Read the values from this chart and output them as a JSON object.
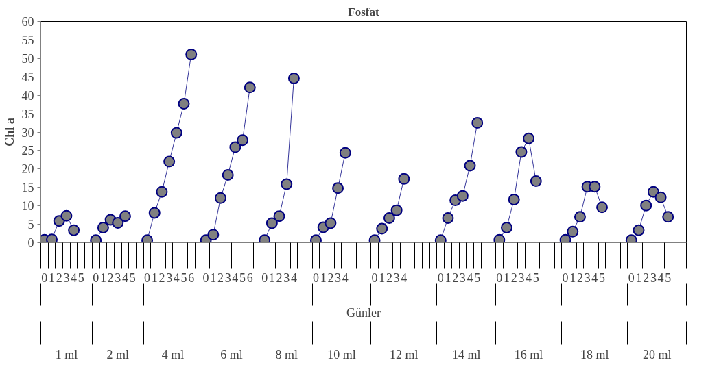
{
  "chart_data": {
    "type": "line",
    "title": "Fosfat",
    "xlabel": "Günler",
    "ylabel": "Chl a",
    "categories": [
      "0",
      "1",
      "2",
      "3",
      "4",
      "5",
      null,
      "0",
      "1",
      "2",
      "3",
      "4",
      "5",
      null,
      "0",
      "1",
      "2",
      "3",
      "4",
      "5",
      "6",
      null,
      "0",
      "1",
      "2",
      "3",
      "4",
      "5",
      "6",
      null,
      "0",
      "1",
      "2",
      "3",
      "4",
      null,
      null,
      "0",
      "1",
      "2",
      "3",
      "4",
      null,
      null,
      null,
      "0",
      "1",
      "2",
      "3",
      "4",
      null,
      null,
      null,
      null,
      "0",
      "1",
      "2",
      "3",
      "4",
      "5",
      null,
      null,
      "0",
      "1",
      "2",
      "3",
      "4",
      "5",
      null,
      null,
      null,
      "0",
      "1",
      "2",
      "3",
      "4",
      "5",
      null,
      null,
      null,
      "0",
      "1",
      "2",
      "3",
      "4",
      "5",
      null,
      null
    ],
    "annotations": [
      "1 ml",
      "2 ml",
      "4 ml",
      "6 ml",
      "8 ml",
      "10 ml",
      "12 ml",
      "14 ml",
      "16 ml",
      "18 ml",
      "20 ml"
    ],
    "ylim": [
      0,
      60
    ],
    "yticks": [
      0,
      5,
      10,
      15,
      20,
      25,
      30,
      35,
      40,
      45,
      50,
      55,
      60
    ],
    "marker": "circle",
    "line_style": "solid",
    "series": [
      {
        "color": "#000080",
        "values": [
          0.8,
          0.9,
          5.9,
          7.3,
          3.4,
          null,
          null,
          null,
          null,
          null,
          null,
          null,
          null,
          null,
          null,
          null,
          null,
          null,
          null,
          null,
          null,
          null,
          null,
          null,
          null,
          null,
          null,
          null,
          null,
          null,
          null,
          null,
          null,
          null,
          null,
          null,
          null,
          null,
          null,
          null,
          null,
          null,
          null,
          null,
          null,
          null,
          null,
          null,
          null,
          null,
          null,
          null,
          null,
          null,
          null,
          null,
          null,
          null,
          null,
          null,
          null,
          null,
          null,
          null,
          null,
          null,
          null,
          null,
          null,
          null,
          null,
          null,
          null,
          null,
          null,
          null,
          null,
          null,
          null,
          null,
          null,
          null,
          null,
          null,
          null,
          null,
          null,
          null
        ]
      },
      {
        "color": "#000080",
        "values": [
          null,
          null,
          null,
          null,
          null,
          null,
          null,
          0.7,
          4.1,
          6.2,
          5.4,
          7.2,
          null,
          null,
          null,
          null,
          null,
          null,
          null,
          null,
          null,
          null,
          null,
          null,
          null,
          null,
          null,
          null,
          null,
          null,
          null,
          null,
          null,
          null,
          null,
          null,
          null,
          null,
          null,
          null,
          null,
          null,
          null,
          null,
          null,
          null,
          null,
          null,
          null,
          null,
          null,
          null,
          null,
          null,
          null,
          null,
          null,
          null,
          null,
          null,
          null,
          null,
          null,
          null,
          null,
          null,
          null,
          null,
          null,
          null,
          null,
          null,
          null,
          null,
          null,
          null,
          null,
          null,
          null,
          null,
          null,
          null,
          null,
          null,
          null,
          null,
          null,
          null
        ]
      },
      {
        "color": "#000080",
        "values": [
          null,
          null,
          null,
          null,
          null,
          null,
          null,
          null,
          null,
          null,
          null,
          null,
          null,
          null,
          0.7,
          8.1,
          13.8,
          22.0,
          29.8,
          37.7,
          51.1,
          null,
          null,
          null,
          null,
          null,
          null,
          null,
          null,
          null,
          null,
          null,
          null,
          null,
          null,
          null,
          null,
          null,
          null,
          null,
          null,
          null,
          null,
          null,
          null,
          null,
          null,
          null,
          null,
          null,
          null,
          null,
          null,
          null,
          null,
          null,
          null,
          null,
          null,
          null,
          null,
          null,
          null,
          null,
          null,
          null,
          null,
          null,
          null,
          null,
          null,
          null,
          null,
          null,
          null,
          null,
          null,
          null,
          null,
          null,
          null,
          null,
          null,
          null,
          null,
          null,
          null,
          null
        ]
      },
      {
        "color": "#000080",
        "values": [
          null,
          null,
          null,
          null,
          null,
          null,
          null,
          null,
          null,
          null,
          null,
          null,
          null,
          null,
          null,
          null,
          null,
          null,
          null,
          null,
          null,
          null,
          0.7,
          2.2,
          12.1,
          18.4,
          25.9,
          27.8,
          42.1,
          null,
          null,
          null,
          null,
          null,
          null,
          null,
          null,
          null,
          null,
          null,
          null,
          null,
          null,
          null,
          null,
          null,
          null,
          null,
          null,
          null,
          null,
          null,
          null,
          null,
          null,
          null,
          null,
          null,
          null,
          null,
          null,
          null,
          null,
          null,
          null,
          null,
          null,
          null,
          null,
          null,
          null,
          null,
          null,
          null,
          null,
          null,
          null,
          null,
          null,
          null,
          null,
          null,
          null,
          null,
          null,
          null,
          null,
          null
        ]
      },
      {
        "color": "#000080",
        "values": [
          null,
          null,
          null,
          null,
          null,
          null,
          null,
          null,
          null,
          null,
          null,
          null,
          null,
          null,
          null,
          null,
          null,
          null,
          null,
          null,
          null,
          null,
          null,
          null,
          null,
          null,
          null,
          null,
          null,
          null,
          0.7,
          5.3,
          7.2,
          15.9,
          44.6,
          null,
          null,
          null,
          null,
          null,
          null,
          null,
          null,
          null,
          null,
          null,
          null,
          null,
          null,
          null,
          null,
          null,
          null,
          null,
          null,
          null,
          null,
          null,
          null,
          null,
          null,
          null,
          null,
          null,
          null,
          null,
          null,
          null,
          null,
          null,
          null,
          null,
          null,
          null,
          null,
          null,
          null,
          null,
          null,
          null,
          null,
          null,
          null,
          null,
          null,
          null,
          null,
          null
        ]
      },
      {
        "color": "#000080",
        "values": [
          null,
          null,
          null,
          null,
          null,
          null,
          null,
          null,
          null,
          null,
          null,
          null,
          null,
          null,
          null,
          null,
          null,
          null,
          null,
          null,
          null,
          null,
          null,
          null,
          null,
          null,
          null,
          null,
          null,
          null,
          null,
          null,
          null,
          null,
          null,
          null,
          null,
          0.7,
          4.2,
          5.3,
          14.8,
          24.4,
          null,
          null,
          null,
          null,
          null,
          null,
          null,
          null,
          null,
          null,
          null,
          null,
          null,
          null,
          null,
          null,
          null,
          null,
          null,
          null,
          null,
          null,
          null,
          null,
          null,
          null,
          null,
          null,
          null,
          null,
          null,
          null,
          null,
          null,
          null,
          null,
          null,
          null,
          null,
          null,
          null,
          null,
          null,
          null,
          null,
          null
        ]
      },
      {
        "color": "#000080",
        "values": [
          null,
          null,
          null,
          null,
          null,
          null,
          null,
          null,
          null,
          null,
          null,
          null,
          null,
          null,
          null,
          null,
          null,
          null,
          null,
          null,
          null,
          null,
          null,
          null,
          null,
          null,
          null,
          null,
          null,
          null,
          null,
          null,
          null,
          null,
          null,
          null,
          null,
          null,
          null,
          null,
          null,
          null,
          null,
          null,
          null,
          0.7,
          3.8,
          6.7,
          8.8,
          17.3,
          null,
          null,
          null,
          null,
          null,
          null,
          null,
          null,
          null,
          null,
          null,
          null,
          null,
          null,
          null,
          null,
          null,
          null,
          null,
          null,
          null,
          null,
          null,
          null,
          null,
          null,
          null,
          null,
          null,
          null,
          null,
          null,
          null,
          null,
          null,
          null,
          null,
          null
        ]
      },
      {
        "color": "#000080",
        "values": [
          null,
          null,
          null,
          null,
          null,
          null,
          null,
          null,
          null,
          null,
          null,
          null,
          null,
          null,
          null,
          null,
          null,
          null,
          null,
          null,
          null,
          null,
          null,
          null,
          null,
          null,
          null,
          null,
          null,
          null,
          null,
          null,
          null,
          null,
          null,
          null,
          null,
          null,
          null,
          null,
          null,
          null,
          null,
          null,
          null,
          null,
          null,
          null,
          null,
          null,
          null,
          null,
          null,
          null,
          0.7,
          6.7,
          11.5,
          12.7,
          20.9,
          32.5,
          null,
          null,
          null,
          null,
          null,
          null,
          null,
          null,
          null,
          null,
          null,
          null,
          null,
          null,
          null,
          null,
          null,
          null,
          null,
          null,
          null,
          null,
          null,
          null,
          null,
          null,
          null,
          null
        ]
      },
      {
        "color": "#000080",
        "values": [
          null,
          null,
          null,
          null,
          null,
          null,
          null,
          null,
          null,
          null,
          null,
          null,
          null,
          null,
          null,
          null,
          null,
          null,
          null,
          null,
          null,
          null,
          null,
          null,
          null,
          null,
          null,
          null,
          null,
          null,
          null,
          null,
          null,
          null,
          null,
          null,
          null,
          null,
          null,
          null,
          null,
          null,
          null,
          null,
          null,
          null,
          null,
          null,
          null,
          null,
          null,
          null,
          null,
          null,
          null,
          null,
          null,
          null,
          null,
          null,
          null,
          null,
          0.8,
          4.1,
          11.7,
          24.6,
          28.3,
          16.7,
          null,
          null,
          null,
          null,
          null,
          null,
          null,
          null,
          null,
          null,
          null,
          null,
          null,
          null,
          null,
          null,
          null,
          null,
          null,
          null
        ]
      },
      {
        "color": "#000080",
        "values": [
          null,
          null,
          null,
          null,
          null,
          null,
          null,
          null,
          null,
          null,
          null,
          null,
          null,
          null,
          null,
          null,
          null,
          null,
          null,
          null,
          null,
          null,
          null,
          null,
          null,
          null,
          null,
          null,
          null,
          null,
          null,
          null,
          null,
          null,
          null,
          null,
          null,
          null,
          null,
          null,
          null,
          null,
          null,
          null,
          null,
          null,
          null,
          null,
          null,
          null,
          null,
          null,
          null,
          null,
          null,
          null,
          null,
          null,
          null,
          null,
          null,
          null,
          null,
          null,
          null,
          null,
          null,
          null,
          null,
          null,
          null,
          0.8,
          3.0,
          7.0,
          15.2,
          15.2,
          9.6,
          null,
          null,
          null,
          null,
          null,
          null,
          null,
          null,
          null,
          null,
          null
        ]
      },
      {
        "color": "#000080",
        "values": [
          null,
          null,
          null,
          null,
          null,
          null,
          null,
          null,
          null,
          null,
          null,
          null,
          null,
          null,
          null,
          null,
          null,
          null,
          null,
          null,
          null,
          null,
          null,
          null,
          null,
          null,
          null,
          null,
          null,
          null,
          null,
          null,
          null,
          null,
          null,
          null,
          null,
          null,
          null,
          null,
          null,
          null,
          null,
          null,
          null,
          null,
          null,
          null,
          null,
          null,
          null,
          null,
          null,
          null,
          null,
          null,
          null,
          null,
          null,
          null,
          null,
          null,
          null,
          null,
          null,
          null,
          null,
          null,
          null,
          null,
          null,
          null,
          null,
          null,
          null,
          null,
          null,
          null,
          null,
          null,
          0.7,
          3.4,
          10.1,
          13.8,
          12.3,
          7.0,
          null,
          null
        ]
      }
    ]
  }
}
